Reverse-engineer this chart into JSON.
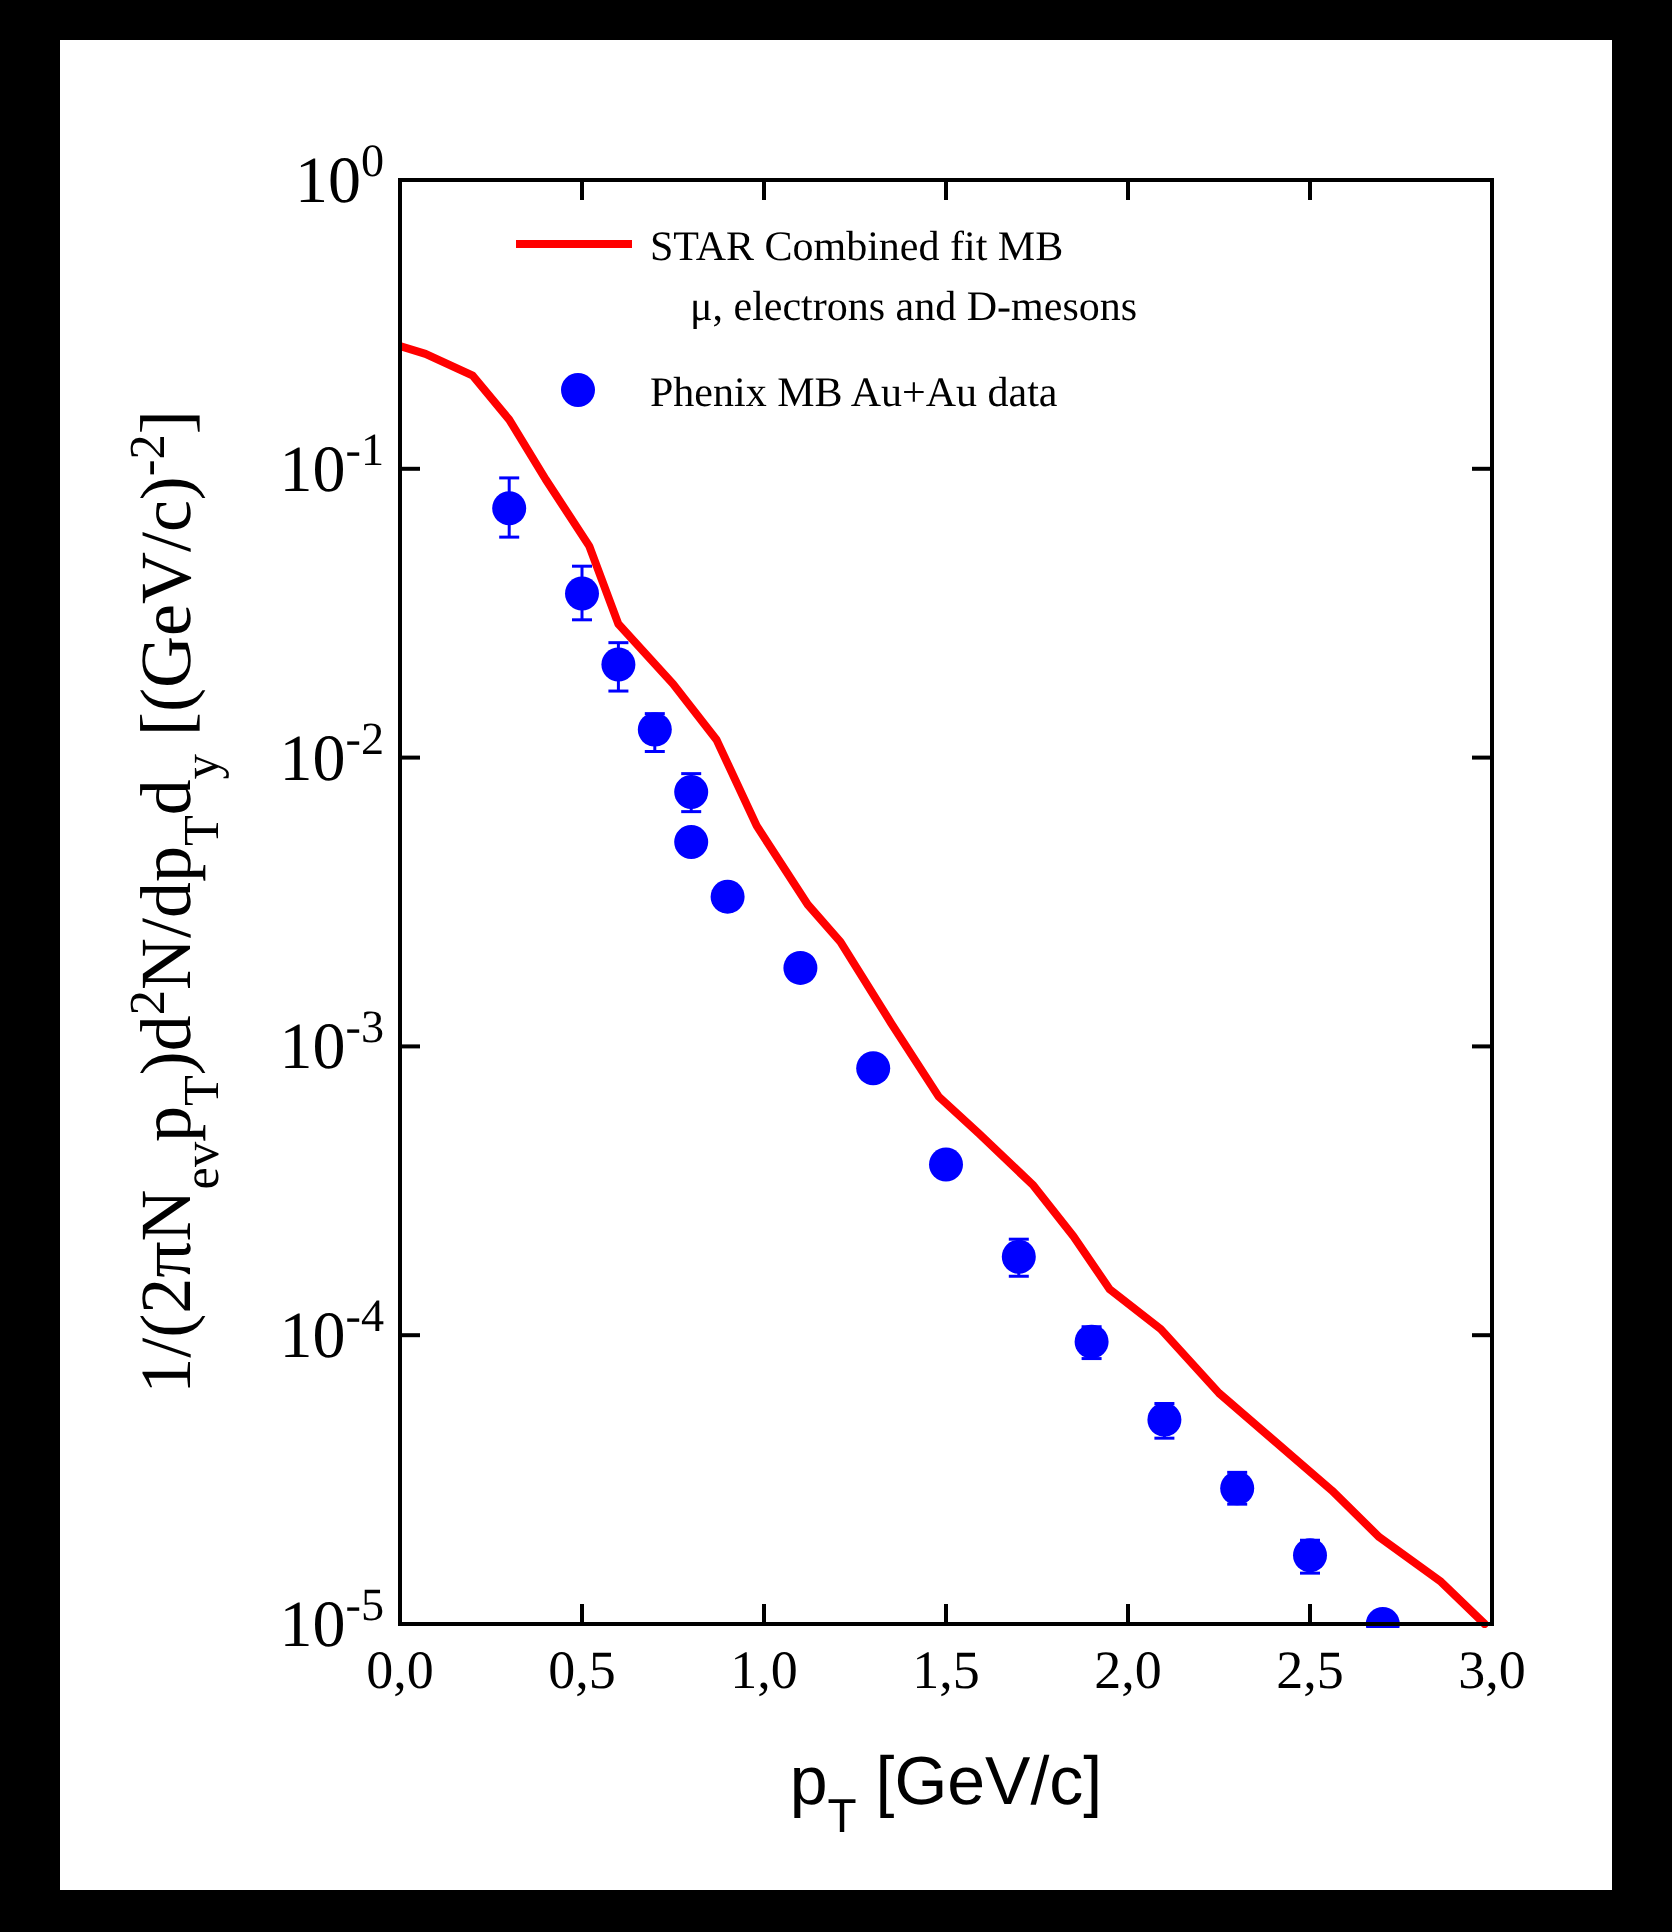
{
  "chart_data": {
    "type": "scatter",
    "xlabel": "p$_{T}$ [GeV/c]",
    "ylabel": "1/(2πN$_{ev}$p$_{T}$)d$^{2}$N/dp$_{T}$d$_{y}$ [(GeV/c)$^{-2}$]",
    "log": "y",
    "xlim": [
      0,
      3
    ],
    "ylim": [
      1e-05,
      1
    ],
    "legend": "top",
    "marker": "circle",
    "xticks": [
      {
        "value": 0,
        "label": "0,0"
      },
      {
        "value": 0.5,
        "label": "0,5"
      },
      {
        "value": 1,
        "label": "1,0"
      },
      {
        "value": 1.5,
        "label": "1,5"
      },
      {
        "value": 2,
        "label": "2,0"
      },
      {
        "value": 2.5,
        "label": "2,5"
      },
      {
        "value": 3,
        "label": "3,0"
      }
    ],
    "yticks": [
      {
        "value": 1,
        "label": "10$^{0}$"
      },
      {
        "value": 0.1,
        "label": "10$^{-1}$"
      },
      {
        "value": 0.01,
        "label": "10$^{-2}$"
      },
      {
        "value": 0.001,
        "label": "10$^{-3}$"
      },
      {
        "value": 0.0001,
        "label": "10$^{-4}$"
      },
      {
        "value": 1e-05,
        "label": "10$^{-5}$"
      }
    ],
    "series": [
      {
        "type": "line",
        "name": "STAR Combined fit MB\nμ, electrons and D-mesons",
        "color": "#ff0000",
        "line_style": "solid",
        "marker": "none",
        "x": [
          0,
          0.07,
          0.2,
          0.3,
          0.4,
          0.52,
          0.6,
          0.75,
          0.87,
          0.98,
          1.12,
          1.21,
          1.35,
          1.48,
          1.59,
          1.74,
          1.85,
          1.95,
          2.09,
          2.25,
          2.56,
          2.69,
          2.86,
          2.98
        ],
        "values": [
          0.266,
          0.25,
          0.21,
          0.148,
          0.092,
          0.054,
          0.029,
          0.018,
          0.0115,
          0.0058,
          0.0031,
          0.0023,
          0.0012,
          0.00067,
          0.0005,
          0.00033,
          0.00022,
          0.000144,
          0.000105,
          6.3e-05,
          2.9e-05,
          2e-05,
          1.4e-05,
          1e-05
        ]
      },
      {
        "name": "Phenix MB Au+Au data",
        "color": "#0000ff",
        "x": [
          0.3,
          0.5,
          0.6,
          0.7,
          0.8,
          0.8,
          0.9,
          1.1,
          1.3,
          1.5,
          1.7,
          1.9,
          2.1,
          2.3,
          2.5,
          2.7
        ],
        "values": [
          0.073,
          0.037,
          0.021,
          0.0125,
          0.0076,
          0.0051,
          0.0033,
          0.00187,
          0.00084,
          0.00039,
          0.000187,
          9.5e-05,
          5.1e-05,
          2.95e-05,
          1.73e-05,
          1e-05
        ],
        "errors": [
          [
            0.058,
            0.093
          ],
          [
            0.03,
            0.046
          ],
          [
            0.017,
            0.025
          ],
          [
            0.0105,
            0.0142
          ],
          [
            0.0065,
            0.0088
          ],
          null,
          null,
          null,
          null,
          null,
          [
            0.00016,
            0.000215
          ],
          [
            8.3e-05,
            0.000107
          ],
          [
            4.4e-05,
            5.8e-05
          ],
          [
            2.6e-05,
            3.35e-05
          ],
          [
            1.5e-05,
            1.95e-05
          ],
          null
        ]
      }
    ]
  }
}
